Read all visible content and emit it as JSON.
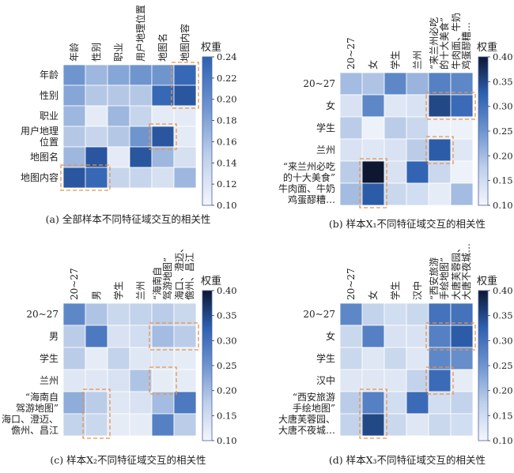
{
  "colorbar_title": "权重",
  "chart_data": [
    {
      "type": "heatmap",
      "caption": "(a) 全部样本不同特征域交互的相关性",
      "columns": [
        "年龄",
        "性别",
        "职业",
        "用户地理位置",
        "地图名",
        "地图内容"
      ],
      "rows": [
        "年龄",
        "性别",
        "职业",
        "用户地理位置",
        "地图名",
        "地图内容"
      ],
      "values": [
        [
          0.17,
          0.15,
          0.16,
          0.17,
          0.17,
          0.2
        ],
        [
          0.16,
          0.14,
          0.14,
          0.14,
          0.2,
          0.21
        ],
        [
          0.15,
          0.11,
          0.15,
          0.13,
          0.11,
          0.11
        ],
        [
          0.14,
          0.13,
          0.14,
          0.17,
          0.21,
          0.11
        ],
        [
          0.15,
          0.21,
          0.11,
          0.21,
          0.15,
          0.12
        ],
        [
          0.21,
          0.2,
          0.13,
          0.13,
          0.12,
          0.15
        ]
      ],
      "colorbar": {
        "min": 0.1,
        "max": 0.24,
        "ticks": [
          0.1,
          0.12,
          0.14,
          0.16,
          0.18,
          0.2,
          0.22,
          0.24
        ]
      },
      "highlights": [
        {
          "row": 0,
          "col": 5,
          "rows": 2,
          "cols": 1
        },
        {
          "row": 3,
          "col": 4,
          "rows": 1,
          "cols": 1
        },
        {
          "row": 5,
          "col": 0,
          "rows": 1,
          "cols": 2
        }
      ]
    },
    {
      "type": "heatmap",
      "caption": "(b) 样本X₁不同特征域交互的相关性",
      "columns": [
        "20~27",
        "女",
        "学生",
        "兰州",
        "“来兰州必吃的十大美食”",
        "牛肉面、牛奶鸡蛋醪糟…"
      ],
      "rows": [
        "20~27",
        "女",
        "学生",
        "兰州",
        "“来兰州必吃的十大美食”",
        "牛肉面、牛奶鸡蛋醪糟…"
      ],
      "values": [
        [
          0.2,
          0.19,
          0.27,
          0.21,
          0.28,
          0.27
        ],
        [
          0.14,
          0.27,
          0.13,
          0.14,
          0.35,
          0.31
        ],
        [
          0.18,
          0.11,
          0.18,
          0.16,
          0.11,
          0.11
        ],
        [
          0.14,
          0.13,
          0.14,
          0.18,
          0.33,
          0.13
        ],
        [
          0.18,
          0.4,
          0.14,
          0.32,
          0.16,
          0.11
        ],
        [
          0.2,
          0.33,
          0.16,
          0.15,
          0.12,
          0.2
        ]
      ],
      "colorbar": {
        "min": 0.1,
        "max": 0.4,
        "ticks": [
          0.1,
          0.15,
          0.2,
          0.25,
          0.3,
          0.35,
          0.4
        ]
      },
      "highlights": [
        {
          "row": 1,
          "col": 4,
          "rows": 1,
          "cols": 2
        },
        {
          "row": 3,
          "col": 4,
          "rows": 1,
          "cols": 1
        },
        {
          "row": 4,
          "col": 1,
          "rows": 2,
          "cols": 1
        }
      ]
    },
    {
      "type": "heatmap",
      "caption": "(c) 样本X₂不同特征域交互的相关性",
      "columns": [
        "20~27",
        "男",
        "学生",
        "兰州",
        "“海南自驾游地图”",
        "海口、澄迈、儋州、昌江"
      ],
      "rows": [
        "20~27",
        "男",
        "学生",
        "兰州",
        "“海南自驾游地图”",
        "海口、澄迈、儋州、昌江"
      ],
      "values": [
        [
          0.27,
          0.19,
          0.16,
          0.17,
          0.18,
          0.16
        ],
        [
          0.18,
          0.29,
          0.14,
          0.15,
          0.2,
          0.18
        ],
        [
          0.18,
          0.12,
          0.17,
          0.13,
          0.13,
          0.12
        ],
        [
          0.13,
          0.13,
          0.14,
          0.19,
          0.12,
          0.12
        ],
        [
          0.22,
          0.18,
          0.13,
          0.14,
          0.2,
          0.29
        ],
        [
          0.17,
          0.16,
          0.12,
          0.12,
          0.28,
          0.18
        ]
      ],
      "colorbar": {
        "min": 0.1,
        "max": 0.4,
        "ticks": [
          0.1,
          0.15,
          0.2,
          0.25,
          0.3,
          0.35,
          0.4
        ]
      },
      "highlights": [
        {
          "row": 1,
          "col": 4,
          "rows": 1,
          "cols": 2
        },
        {
          "row": 3,
          "col": 4,
          "rows": 1,
          "cols": 1
        },
        {
          "row": 4,
          "col": 1,
          "rows": 2,
          "cols": 1
        }
      ]
    },
    {
      "type": "heatmap",
      "caption": "(d) 样本X₃不同特征域交互的相关性",
      "columns": [
        "20~27",
        "女",
        "学生",
        "汉中",
        "“西安旅游手绘地图”",
        "大唐芙蓉园、大唐不夜城…"
      ],
      "rows": [
        "20~27",
        "女",
        "学生",
        "汉中",
        "“西安旅游手绘地图”",
        "大唐芙蓉园、大唐不夜城…"
      ],
      "values": [
        [
          0.27,
          0.17,
          0.15,
          0.16,
          0.3,
          0.3
        ],
        [
          0.16,
          0.28,
          0.14,
          0.14,
          0.28,
          0.33
        ],
        [
          0.16,
          0.13,
          0.16,
          0.13,
          0.27,
          0.26
        ],
        [
          0.13,
          0.13,
          0.13,
          0.17,
          0.31,
          0.12
        ],
        [
          0.18,
          0.28,
          0.15,
          0.31,
          0.15,
          0.17
        ],
        [
          0.17,
          0.35,
          0.16,
          0.13,
          0.16,
          0.15
        ]
      ],
      "colorbar": {
        "min": 0.1,
        "max": 0.4,
        "ticks": [
          0.1,
          0.15,
          0.2,
          0.25,
          0.3,
          0.35,
          0.4
        ]
      },
      "highlights": [
        {
          "row": 1,
          "col": 4,
          "rows": 1,
          "cols": 2
        },
        {
          "row": 3,
          "col": 4,
          "rows": 1,
          "cols": 1
        },
        {
          "row": 4,
          "col": 1,
          "rows": 2,
          "cols": 1
        }
      ]
    }
  ]
}
